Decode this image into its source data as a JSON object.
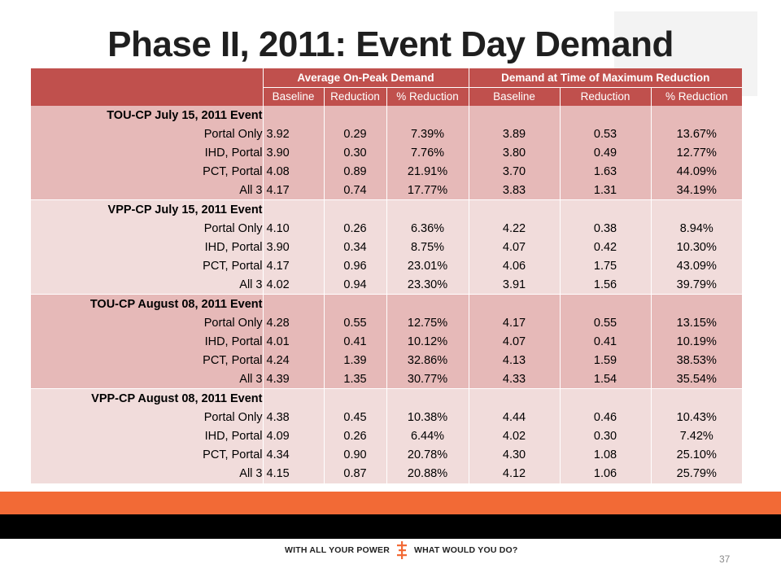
{
  "slide": {
    "title": "Phase II, 2011: Event Day Demand",
    "page_number": "37",
    "tagline_left": "WITH ALL YOUR POWER",
    "tagline_right": "WHAT WOULD YOU DO?",
    "colors": {
      "header": "#c0504d",
      "band_dark": "#e6b9b8",
      "band_light": "#f1dcdb",
      "footer_orange": "#f26a36",
      "footer_black": "#000000"
    }
  },
  "table": {
    "group_headers": [
      "Average On-Peak Demand",
      "Demand at Time of Maximum Reduction"
    ],
    "sub_headers": [
      "Baseline",
      "Reduction",
      "% Reduction",
      "Baseline",
      "Reduction",
      "% Reduction"
    ],
    "blocks": [
      {
        "title": "TOU-CP July 15, 2011 Event",
        "rows": [
          {
            "label": "Portal Only",
            "values": [
              "3.92",
              "0.29",
              "7.39%",
              "3.89",
              "0.53",
              "13.67%"
            ]
          },
          {
            "label": "IHD, Portal",
            "values": [
              "3.90",
              "0.30",
              "7.76%",
              "3.80",
              "0.49",
              "12.77%"
            ]
          },
          {
            "label": "PCT, Portal",
            "values": [
              "4.08",
              "0.89",
              "21.91%",
              "3.70",
              "1.63",
              "44.09%"
            ]
          },
          {
            "label": "All 3",
            "values": [
              "4.17",
              "0.74",
              "17.77%",
              "3.83",
              "1.31",
              "34.19%"
            ]
          }
        ]
      },
      {
        "title": "VPP-CP July 15, 2011 Event",
        "rows": [
          {
            "label": "Portal Only",
            "values": [
              "4.10",
              "0.26",
              "6.36%",
              "4.22",
              "0.38",
              "8.94%"
            ]
          },
          {
            "label": "IHD, Portal",
            "values": [
              "3.90",
              "0.34",
              "8.75%",
              "4.07",
              "0.42",
              "10.30%"
            ]
          },
          {
            "label": "PCT, Portal",
            "values": [
              "4.17",
              "0.96",
              "23.01%",
              "4.06",
              "1.75",
              "43.09%"
            ]
          },
          {
            "label": "All 3",
            "values": [
              "4.02",
              "0.94",
              "23.30%",
              "3.91",
              "1.56",
              "39.79%"
            ]
          }
        ]
      },
      {
        "title": "TOU-CP August 08, 2011 Event",
        "rows": [
          {
            "label": "Portal Only",
            "values": [
              "4.28",
              "0.55",
              "12.75%",
              "4.17",
              "0.55",
              "13.15%"
            ]
          },
          {
            "label": "IHD, Portal",
            "values": [
              "4.01",
              "0.41",
              "10.12%",
              "4.07",
              "0.41",
              "10.19%"
            ]
          },
          {
            "label": "PCT, Portal",
            "values": [
              "4.24",
              "1.39",
              "32.86%",
              "4.13",
              "1.59",
              "38.53%"
            ]
          },
          {
            "label": "All 3",
            "values": [
              "4.39",
              "1.35",
              "30.77%",
              "4.33",
              "1.54",
              "35.54%"
            ]
          }
        ]
      },
      {
        "title": "VPP-CP August 08, 2011 Event",
        "rows": [
          {
            "label": "Portal Only",
            "values": [
              "4.38",
              "0.45",
              "10.38%",
              "4.44",
              "0.46",
              "10.43%"
            ]
          },
          {
            "label": "IHD, Portal",
            "values": [
              "4.09",
              "0.26",
              "6.44%",
              "4.02",
              "0.30",
              "7.42%"
            ]
          },
          {
            "label": "PCT, Portal",
            "values": [
              "4.34",
              "0.90",
              "20.78%",
              "4.30",
              "1.08",
              "25.10%"
            ]
          },
          {
            "label": "All 3",
            "values": [
              "4.15",
              "0.87",
              "20.88%",
              "4.12",
              "1.06",
              "25.79%"
            ]
          }
        ]
      }
    ]
  }
}
